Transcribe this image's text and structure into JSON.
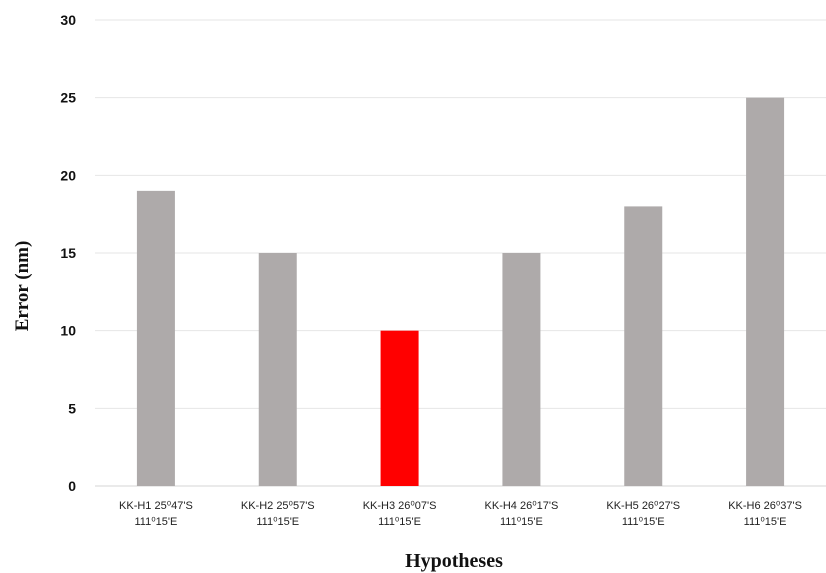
{
  "chart_data": {
    "type": "bar",
    "categories": [
      [
        "KK-H1 25⁰47'S",
        "111⁰15'E"
      ],
      [
        "KK-H2 25⁰57'S",
        "111⁰15'E"
      ],
      [
        "KK-H3 26⁰07'S",
        "111⁰15'E"
      ],
      [
        "KK-H4 26⁰17'S",
        "111⁰15'E"
      ],
      [
        "KK-H5 26⁰27'S",
        "111⁰15'E"
      ],
      [
        "KK-H6 26⁰37'S",
        "111⁰15'E"
      ]
    ],
    "values": [
      19,
      15,
      10,
      15,
      18,
      25
    ],
    "bar_colors": [
      "#aeaaaa",
      "#aeaaaa",
      "#ff0000",
      "#aeaaaa",
      "#aeaaaa",
      "#aeaaaa"
    ],
    "xlabel": "Hypotheses",
    "ylabel": "Error (nm)",
    "ylim": [
      0,
      30
    ],
    "yticks": [
      0,
      5,
      10,
      15,
      20,
      25,
      30
    ],
    "grid": true,
    "legend": "none"
  }
}
